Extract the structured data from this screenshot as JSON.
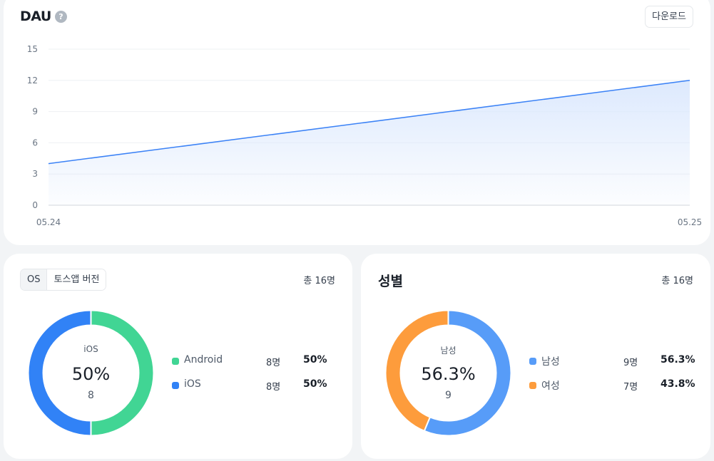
{
  "dau": {
    "title": "DAU",
    "help_icon": "?",
    "download_label": "다운로드",
    "chart_data": {
      "type": "area",
      "x": [
        "05.24",
        "05.25"
      ],
      "series": [
        {
          "values": [
            4,
            12
          ]
        }
      ],
      "yticks": [
        0,
        3,
        6,
        9,
        12,
        15
      ],
      "ylim": [
        0,
        15
      ],
      "grid": true,
      "line_color": "#3b82f6",
      "fill_color": "#dbe8fd"
    }
  },
  "os": {
    "tabs": [
      {
        "label": "OS",
        "active": true
      },
      {
        "label": "토스앱 버전",
        "active": false
      }
    ],
    "total": "총 16명",
    "center": {
      "label": "iOS",
      "percent": "50%",
      "count": "8"
    },
    "chart_data": {
      "type": "pie",
      "categories": [
        "Android",
        "iOS"
      ],
      "values": [
        8,
        8
      ],
      "colors": [
        "#41d594",
        "#3182f6"
      ]
    },
    "legend": [
      {
        "label": "Android",
        "count": "8명",
        "percent": "50%",
        "color": "#41d594"
      },
      {
        "label": "iOS",
        "count": "8명",
        "percent": "50%",
        "color": "#3182f6"
      }
    ]
  },
  "gender": {
    "title": "성별",
    "total": "총 16명",
    "center": {
      "label": "남성",
      "percent": "56.3%",
      "count": "9"
    },
    "chart_data": {
      "type": "pie",
      "categories": [
        "남성",
        "여성"
      ],
      "values": [
        9,
        7
      ],
      "colors": [
        "#579cf8",
        "#fd9c3c"
      ]
    },
    "legend": [
      {
        "label": "남성",
        "count": "9명",
        "percent": "56.3%",
        "color": "#579cf8"
      },
      {
        "label": "여성",
        "count": "7명",
        "percent": "43.8%",
        "color": "#fd9c3c"
      }
    ]
  }
}
